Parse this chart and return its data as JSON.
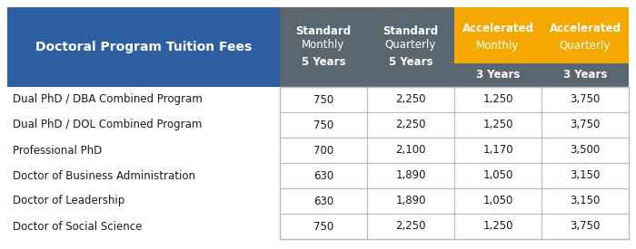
{
  "title_text": "Doctoral Program Tuition Fees",
  "col_headers": [
    [
      "Standard\nMonthly\n5 Years"
    ],
    [
      "Standard\nQuarterly\n5 Years"
    ],
    [
      "Accelerated\nMonthly",
      "3 Years"
    ],
    [
      "Accelerated\nQuarterly",
      "3 Years"
    ]
  ],
  "rows": [
    {
      "label": "Dual PhD / DBA Combined Program",
      "values": [
        "750",
        "2,250",
        "1,250",
        "3,750"
      ]
    },
    {
      "label": "Dual PhD / DOL Combined Program",
      "values": [
        "750",
        "2,250",
        "1,250",
        "3,750"
      ]
    },
    {
      "label": "Professional PhD",
      "values": [
        "700",
        "2,100",
        "1,170",
        "3,500"
      ]
    },
    {
      "label": "Doctor of Business Administration",
      "values": [
        "630",
        "1,890",
        "1,050",
        "3,150"
      ]
    },
    {
      "label": "Doctor of Leadership",
      "values": [
        "630",
        "1,890",
        "1,050",
        "3,150"
      ]
    },
    {
      "label": "Doctor of Social Science",
      "values": [
        "750",
        "2,250",
        "1,250",
        "3,750"
      ]
    }
  ],
  "header_bg_title": "#2E5FA3",
  "header_bg_standard": "#5B6770",
  "header_bg_accelerated_orange": "#F5A800",
  "header_bg_accelerated_gray": "#5B6770",
  "header_text_color": "#FFFFFF",
  "row_label_color": "#1a1a1a",
  "value_color": "#1a1a1a",
  "cell_border_color": "#BBBBBB",
  "bg_color": "#FFFFFF",
  "fig_width": 7.0,
  "fig_height": 2.75,
  "dpi": 100
}
